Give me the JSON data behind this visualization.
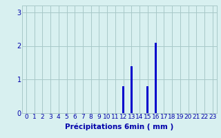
{
  "hours": [
    0,
    1,
    2,
    3,
    4,
    5,
    6,
    7,
    8,
    9,
    10,
    11,
    12,
    13,
    14,
    15,
    16,
    17,
    18,
    19,
    20,
    21,
    22,
    23
  ],
  "values": [
    0,
    0,
    0,
    0,
    0,
    0,
    0,
    0,
    0,
    0,
    0,
    0,
    0.8,
    1.4,
    0,
    0.8,
    2.1,
    0,
    0,
    0,
    0,
    0,
    0,
    0
  ],
  "bar_color": "#0000cc",
  "background_color": "#d8f0f0",
  "grid_color": "#a8c8c8",
  "axis_color": "#0000aa",
  "xlabel": "Précipitations 6min ( mm )",
  "ylim": [
    0,
    3.2
  ],
  "yticks": [
    0,
    1,
    2,
    3
  ],
  "xlim": [
    -0.5,
    23.5
  ],
  "xlabel_fontsize": 7.5,
  "tick_fontsize": 6.5,
  "bar_width": 0.25
}
